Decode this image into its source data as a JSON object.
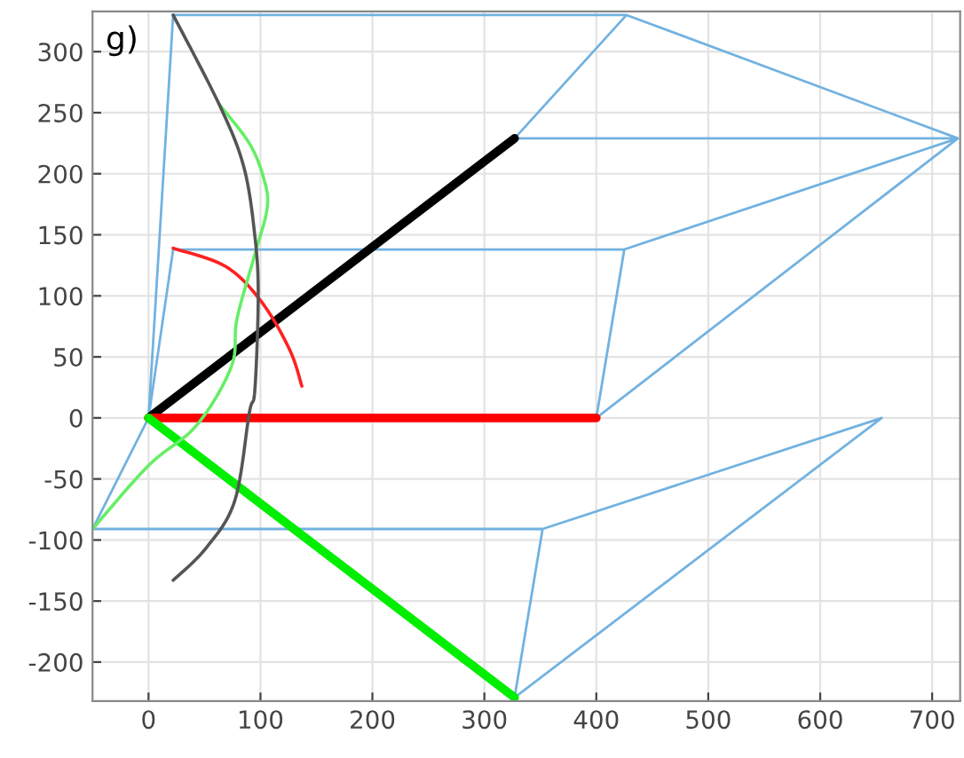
{
  "chart_data": {
    "type": "line",
    "annotations": [
      "g)"
    ],
    "xlim": [
      -50,
      725
    ],
    "ylim": [
      -232,
      333
    ],
    "xticks": [
      0,
      100,
      200,
      300,
      400,
      500,
      600,
      700
    ],
    "yticks": [
      -200,
      -150,
      -100,
      -50,
      0,
      50,
      100,
      150,
      200,
      250,
      300
    ],
    "grid": true,
    "marker": "none",
    "line_style": "solid",
    "series": [
      {
        "color": "#72b2e0",
        "x": [
          -50,
          0,
          22,
          427,
          723,
          327,
          427,
          null,
          0,
          22,
          425,
          723,
          400,
          425,
          null,
          400,
          723,
          null,
          -50,
          352,
          655,
          327,
          352
        ],
        "values": [
          -91,
          0,
          330,
          330,
          229,
          229,
          330,
          null,
          0,
          138,
          138,
          229,
          0,
          138,
          null,
          0,
          229,
          null,
          -91,
          -91,
          0,
          -229,
          -91
        ]
      },
      {
        "color": "#000000",
        "x": [
          0,
          327
        ],
        "values": [
          0,
          229
        ]
      },
      {
        "color": "#ff0000",
        "x": [
          0,
          400
        ],
        "values": [
          0,
          0
        ]
      },
      {
        "color": "#00ee00",
        "x": [
          0,
          327
        ],
        "values": [
          0,
          -229
        ]
      },
      {
        "color": "#ff2020",
        "x": [
          22,
          69,
          101,
          126,
          137
        ],
        "values": [
          139,
          124,
          95,
          56,
          26
        ]
      },
      {
        "color": "#66ee66",
        "x": [
          -50,
          0,
          43,
          74,
          79,
          95,
          106,
          103,
          90,
          63
        ],
        "values": [
          -91,
          -39,
          -6,
          42,
          81,
          134,
          172,
          196,
          225,
          257
        ]
      },
      {
        "color": "#555555",
        "x": [
          22,
          63,
          85,
          95,
          98,
          95,
          90,
          77,
          51,
          22
        ],
        "values": [
          330,
          257,
          206,
          149,
          100,
          23,
          4,
          -68,
          -107,
          -133
        ]
      }
    ]
  }
}
